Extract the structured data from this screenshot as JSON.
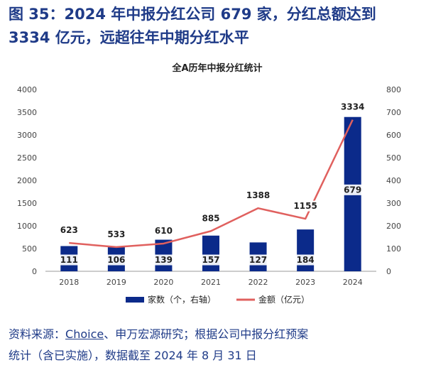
{
  "figure": {
    "title": "图 35：2024 年中报分红公司 679 家，分红总额达到 3334 亿元，远超往年中期分红水平"
  },
  "chart_data": {
    "type": "bar",
    "title": "全A历年中报分红统计",
    "categories": [
      "2018",
      "2019",
      "2020",
      "2021",
      "2022",
      "2023",
      "2024"
    ],
    "series": [
      {
        "name": "家数（个，右轴）",
        "type": "bar",
        "axis": "right",
        "color": "#0b2a8a",
        "values": [
          111,
          106,
          139,
          157,
          127,
          184,
          679
        ]
      },
      {
        "name": "金额（亿元）",
        "type": "line",
        "axis": "left",
        "color": "#e0605e",
        "values": [
          623,
          533,
          610,
          885,
          1388,
          1155,
          3334
        ]
      }
    ],
    "y_left": {
      "min": 0,
      "max": 4000,
      "step": 500,
      "ticks": [
        "0",
        "500",
        "1000",
        "1500",
        "2000",
        "2500",
        "3000",
        "3500",
        "4000"
      ]
    },
    "y_right": {
      "min": 0,
      "max": 800,
      "step": 100,
      "ticks": [
        "0",
        "100",
        "200",
        "300",
        "400",
        "500",
        "600",
        "700",
        "800"
      ]
    },
    "grid": false,
    "legend": "bottom"
  },
  "source": {
    "prefix": "资料来源：",
    "link": "Choice",
    "rest": "、申万宏源研究；根据公司中报分红预案",
    "tail": "统计（含已实施），数据截至 2024 年 8 月 31 日"
  }
}
